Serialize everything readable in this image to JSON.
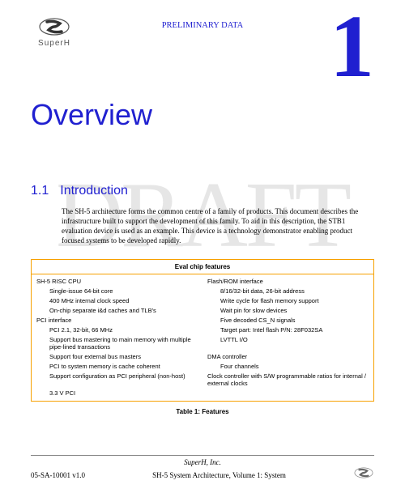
{
  "header": {
    "preliminary": "PRELIMINARY DATA",
    "brand": "SuperH"
  },
  "chapter": {
    "number": "1",
    "title": "Overview"
  },
  "watermark": "DRAFT",
  "section": {
    "number": "1.1",
    "heading": "Introduction",
    "paragraph": "The SH-5 architecture forms the common centre of a family of products. This document describes the infrastructure built to support the development of this family. To aid in this description, the STB1 evaluation device is used as an example. This device is a technology demonstrator enabling product focused systems to be developed rapidly."
  },
  "table": {
    "caption_header": "Eval chip features",
    "caption_footer": "Table 1: Features",
    "border_color": "#f7a000",
    "rows": [
      {
        "l": "SH-5 RISC CPU",
        "li": false,
        "r": "Flash/ROM interface",
        "ri": false
      },
      {
        "l": "Single-issue 64-bit core",
        "li": true,
        "r": "8/16/32-bit data, 26-bit address",
        "ri": true
      },
      {
        "l": "400 MHz internal clock speed",
        "li": true,
        "r": "Write cycle for flash memory support",
        "ri": true
      },
      {
        "l": "On-chip separate i&d caches and TLB's",
        "li": true,
        "r": "Wait pin for slow devices",
        "ri": true
      },
      {
        "l": "PCI interface",
        "li": false,
        "r": "Five decoded CS_N signals",
        "ri": true
      },
      {
        "l": "PCI 2.1, 32-bit, 66 MHz",
        "li": true,
        "r": "Target part: Intel flash P/N: 28F032SA",
        "ri": true
      },
      {
        "l": "Support bus mastering to main memory with multiple pipe-lined transactions",
        "li": true,
        "r": "LVTTL I/O",
        "ri": true
      },
      {
        "l": "Support four external bus masters",
        "li": true,
        "r": "DMA controller",
        "ri": false
      },
      {
        "l": "PCI to system memory is cache coherent",
        "li": true,
        "r": "Four channels",
        "ri": true
      },
      {
        "l": "Support configuration as PCI peripheral (non-host)",
        "li": true,
        "r": "Clock controller with S/W programmable ratios for internal / external clocks",
        "ri": false
      },
      {
        "l": "3.3 V PCI",
        "li": true,
        "r": "",
        "ri": false
      }
    ]
  },
  "footer": {
    "company": "SuperH, Inc.",
    "doc_id": "05-SA-10001 v1.0",
    "doc_title": "SH-5 System Architecture, Volume 1: System"
  },
  "colors": {
    "blue": "#2020d0",
    "orange": "#f7a000",
    "watermark": "#e6e6e6"
  }
}
